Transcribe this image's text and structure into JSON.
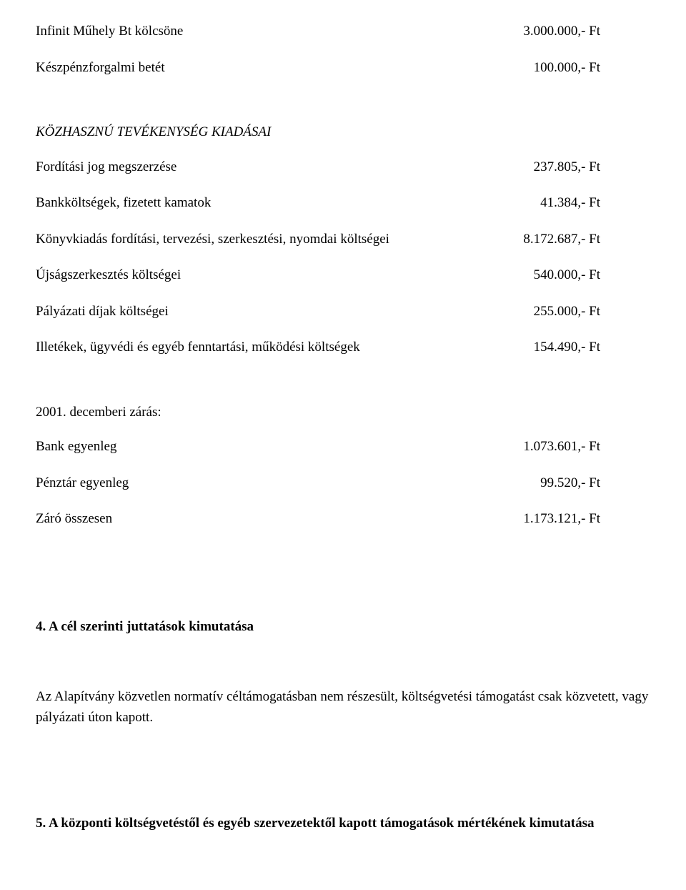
{
  "items1": [
    {
      "label": "Infinit Műhely Bt kölcsöne",
      "value": "3.000.000,-  Ft"
    },
    {
      "label": "Készpénzforgalmi betét",
      "value": "100.000,-  Ft"
    }
  ],
  "section_kiadasai_title": "KÖZHASZNÚ TEVÉKENYSÉG KIADÁSAI",
  "items2": [
    {
      "label": "Fordítási jog megszerzése",
      "value": "237.805,-  Ft"
    },
    {
      "label": "Bankköltségek, fizetett kamatok",
      "value": "41.384,-  Ft"
    },
    {
      "label": "Könyvkiadás fordítási, tervezési, szerkesztési, nyomdai költségei",
      "value": "8.172.687,- Ft"
    },
    {
      "label": "Újságszerkesztés költségei",
      "value": "540.000,- Ft"
    },
    {
      "label": "Pályázati díjak költségei",
      "value": "255.000,- Ft"
    },
    {
      "label": "Illetékek, ügyvédi és egyéb fenntartási, működési költségek",
      "value": "154.490,- Ft"
    }
  ],
  "closing_title": "2001. decemberi zárás:",
  "items3": [
    {
      "label": "Bank egyenleg",
      "value": "1.073.601,- Ft"
    },
    {
      "label": "Pénztár egyenleg",
      "value": "99.520,- Ft"
    },
    {
      "label": "Záró összesen",
      "value": "1.173.121,- Ft"
    }
  ],
  "heading4": "4. A cél szerinti juttatások kimutatása",
  "paragraph4": "Az Alapítvány közvetlen normatív céltámogatásban nem részesült, költségvetési támogatást csak közvetett, vagy pályázati úton kapott.",
  "heading5": "5. A központi költségvetéstől és egyéb szervezetektől kapott támogatások mértékének kimutatása"
}
